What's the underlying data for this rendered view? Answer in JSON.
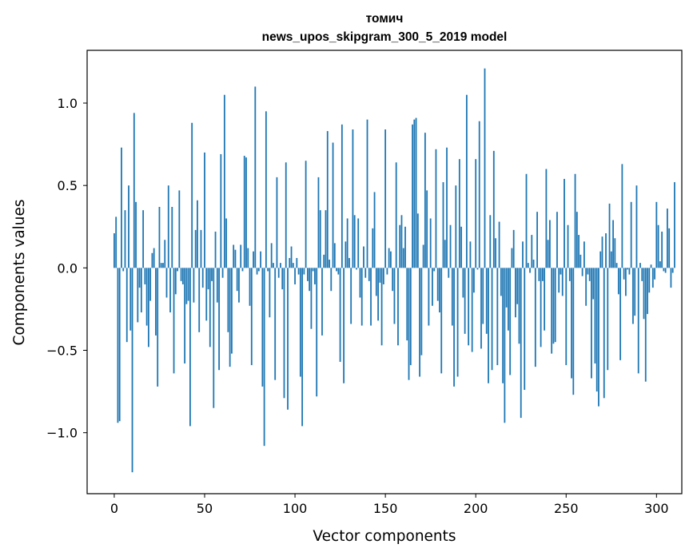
{
  "chart_data": {
    "type": "bar",
    "title_line1": "томич",
    "title_line2": "news_upos_skipgram_300_5_2019 model",
    "xlabel": "Vector components",
    "ylabel": "Components values",
    "xlim": [
      -15,
      314
    ],
    "ylim": [
      -1.37,
      1.32
    ],
    "xticks": [
      0,
      50,
      100,
      150,
      200,
      250,
      300
    ],
    "xtick_labels": [
      "0",
      "50",
      "100",
      "150",
      "200",
      "250",
      "300"
    ],
    "yticks": [
      -1.0,
      -0.5,
      0.0,
      0.5,
      1.0
    ],
    "ytick_labels": [
      "−1.0",
      "−0.5",
      "0.0",
      "0.5",
      "1.0"
    ],
    "grid": false,
    "bar_color": "#1f77b4",
    "values": [
      0.21,
      0.31,
      -0.94,
      -0.93,
      0.73,
      -0.02,
      0.35,
      -0.45,
      0.5,
      -0.38,
      -1.24,
      0.94,
      0.4,
      -0.33,
      -0.12,
      -0.27,
      0.35,
      -0.1,
      -0.35,
      -0.48,
      -0.2,
      0.09,
      0.12,
      -0.41,
      -0.72,
      0.37,
      0.03,
      0.03,
      0.17,
      -0.18,
      0.5,
      -0.27,
      0.37,
      -0.64,
      -0.16,
      -0.02,
      0.47,
      -0.08,
      -0.1,
      -0.58,
      -0.22,
      -0.2,
      -0.96,
      0.88,
      -0.21,
      0.23,
      0.41,
      -0.39,
      0.23,
      -0.12,
      0.7,
      -0.32,
      -0.13,
      -0.48,
      -0.08,
      -0.85,
      0.22,
      -0.21,
      -0.62,
      0.69,
      -0.06,
      1.05,
      0.3,
      -0.39,
      -0.6,
      -0.52,
      0.14,
      0.11,
      -0.14,
      -0.21,
      0.14,
      -0.02,
      0.68,
      0.67,
      0.12,
      -0.23,
      -0.59,
      0.1,
      1.1,
      -0.04,
      -0.02,
      0.1,
      -0.72,
      -1.08,
      0.95,
      -0.02,
      -0.3,
      0.15,
      0.03,
      -0.68,
      0.55,
      -0.06,
      0.03,
      -0.13,
      -0.79,
      0.64,
      -0.86,
      0.06,
      0.13,
      0.03,
      -0.1,
      0.06,
      -0.04,
      -0.66,
      -0.96,
      -0.04,
      0.65,
      -0.08,
      -0.14,
      -0.37,
      -0.02,
      -0.1,
      -0.78,
      0.55,
      0.35,
      -0.41,
      0.08,
      0.35,
      0.83,
      0.05,
      -0.14,
      0.76,
      0.15,
      -0.02,
      -0.04,
      -0.57,
      0.87,
      -0.7,
      0.16,
      0.3,
      0.06,
      -0.34,
      0.84,
      0.32,
      -0.01,
      0.3,
      -0.18,
      -0.35,
      0.13,
      -0.06,
      0.9,
      -0.08,
      -0.35,
      0.24,
      0.46,
      -0.17,
      -0.32,
      -0.09,
      -0.47,
      -0.1,
      0.84,
      -0.04,
      0.12,
      0.1,
      -0.14,
      -0.34,
      0.64,
      -0.47,
      0.26,
      0.32,
      0.12,
      0.25,
      -0.44,
      -0.68,
      -0.59,
      0.87,
      0.9,
      0.91,
      0.33,
      -0.66,
      -0.53,
      0.14,
      0.82,
      0.47,
      -0.35,
      0.3,
      -0.23,
      -0.02,
      0.72,
      -0.2,
      -0.27,
      -0.64,
      0.52,
      0.17,
      0.73,
      -0.06,
      0.26,
      -0.35,
      -0.72,
      0.5,
      -0.66,
      0.66,
      0.25,
      -0.18,
      -0.4,
      1.05,
      -0.47,
      0.16,
      -0.51,
      -0.15,
      0.66,
      -0.01,
      0.89,
      -0.49,
      -0.34,
      1.21,
      -0.4,
      -0.7,
      0.32,
      -0.62,
      0.71,
      0.18,
      -0.59,
      0.28,
      -0.17,
      -0.7,
      -0.94,
      -0.24,
      -0.38,
      -0.65,
      0.12,
      0.23,
      -0.3,
      -0.22,
      -0.46,
      -0.91,
      0.16,
      -0.74,
      0.57,
      0.03,
      -0.03,
      0.2,
      0.05,
      -0.6,
      0.34,
      -0.08,
      -0.48,
      -0.08,
      -0.38,
      0.6,
      0.17,
      0.29,
      -0.52,
      -0.46,
      -0.45,
      0.34,
      -0.15,
      -0.04,
      -0.17,
      0.54,
      -0.59,
      0.26,
      -0.08,
      -0.67,
      -0.77,
      0.57,
      0.34,
      0.2,
      0.08,
      -0.05,
      0.16,
      -0.23,
      -0.04,
      -0.08,
      -0.67,
      -0.19,
      -0.58,
      -0.75,
      -0.84,
      0.1,
      0.19,
      -0.79,
      0.21,
      -0.62,
      0.39,
      0.1,
      0.29,
      0.18,
      0.03,
      -0.16,
      -0.56,
      0.63,
      -0.07,
      -0.17,
      -0.01,
      -0.04,
      0.4,
      -0.34,
      -0.29,
      0.5,
      -0.64,
      0.03,
      -0.08,
      -0.31,
      -0.69,
      -0.28,
      -0.15,
      0.02,
      -0.12,
      -0.07,
      0.4,
      0.26,
      0.04,
      0.22,
      -0.02,
      -0.03,
      0.36,
      0.24,
      -0.12,
      -0.03,
      0.52
    ]
  }
}
